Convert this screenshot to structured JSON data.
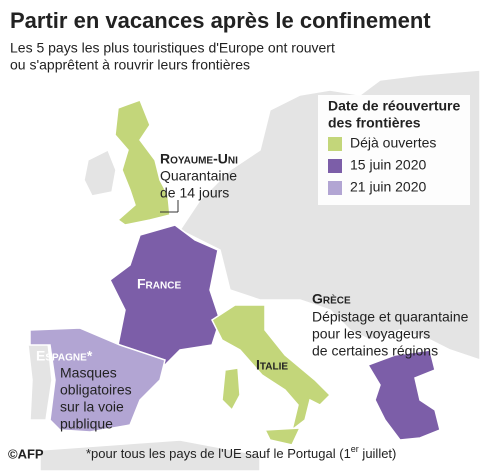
{
  "header": {
    "title": "Partir en vacances après le confinement",
    "subtitle_lines": [
      "Les 5 pays les plus touristiques d'Europe ont rouvert",
      "ou s'apprêtent à rouvrir leurs frontières"
    ]
  },
  "legend": {
    "title_lines": [
      "Date de réouverture",
      "des frontières"
    ],
    "items": [
      {
        "label": "Déjà ouvertes",
        "color": "#c3d67a"
      },
      {
        "label": "15 juin 2020",
        "color": "#7c5ea8"
      },
      {
        "label": "21 juin 2020",
        "color": "#b2a5d3"
      }
    ]
  },
  "countries": [
    {
      "name": "Royaume-Uni",
      "note_lines": [
        "Quarantaine",
        "de 14 jours"
      ]
    },
    {
      "name": "France"
    },
    {
      "name": "Grèce",
      "note_lines": [
        "Dépistage et quarantaine",
        "pour les voyageurs",
        "de certaines régions"
      ]
    },
    {
      "name": "Espagne*",
      "note_lines": [
        "Masques",
        "obligatoires",
        "sur la voie",
        "publique"
      ]
    },
    {
      "name": "Italie"
    }
  ],
  "footer": {
    "credit": "©AFP",
    "footnote_before": "*pour tous les pays de l'UE sauf le Portugal (1",
    "footnote_superscript": "er",
    "footnote_after": " juillet)"
  }
}
